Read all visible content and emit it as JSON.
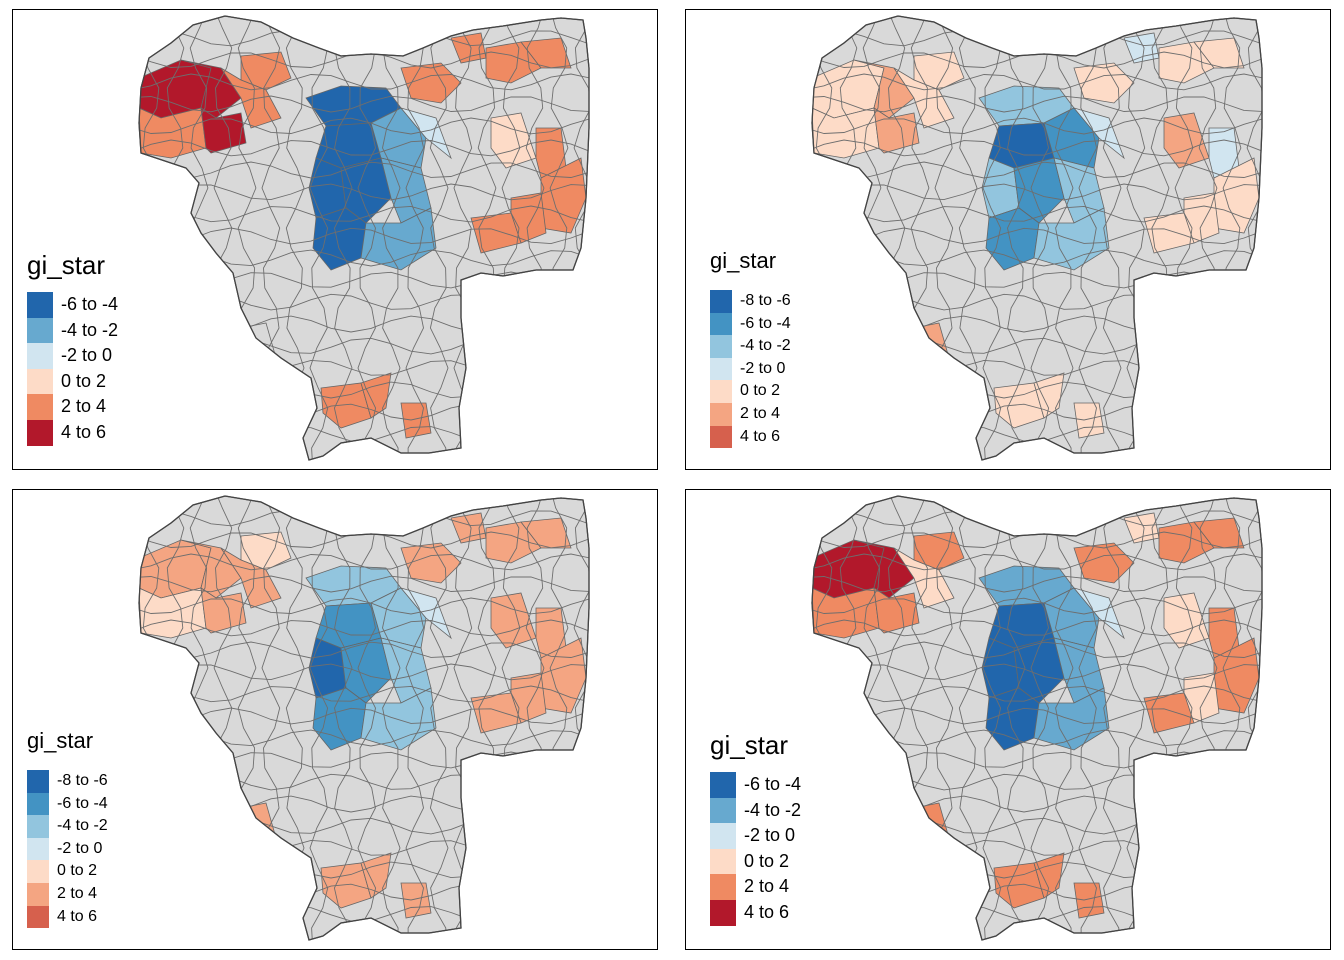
{
  "panels": [
    {
      "legend": {
        "title": "gi_star",
        "items": [
          {
            "label": "-6 to -4",
            "color": "#2166ac"
          },
          {
            "label": "-4 to -2",
            "color": "#67a9cf"
          },
          {
            "label": "-2 to 0",
            "color": "#d1e5f0"
          },
          {
            "label": "0 to 2",
            "color": "#fddbc7"
          },
          {
            "label": "2 to 4",
            "color": "#ef8a62"
          },
          {
            "label": "4 to 6",
            "color": "#b2182b"
          }
        ]
      }
    },
    {
      "legend": {
        "title": "gi_star",
        "items": [
          {
            "label": "-8 to -6",
            "color": "#2166ac"
          },
          {
            "label": "-6 to -4",
            "color": "#4393c3"
          },
          {
            "label": "-4 to -2",
            "color": "#92c5de"
          },
          {
            "label": "-2 to 0",
            "color": "#d1e5f0"
          },
          {
            "label": "0 to 2",
            "color": "#fddbc7"
          },
          {
            "label": "2 to 4",
            "color": "#f4a582"
          },
          {
            "label": "4 to 6",
            "color": "#d6604d"
          }
        ]
      }
    },
    {
      "legend": {
        "title": "gi_star",
        "items": [
          {
            "label": "-8 to -6",
            "color": "#2166ac"
          },
          {
            "label": "-6 to -4",
            "color": "#4393c3"
          },
          {
            "label": "-4 to -2",
            "color": "#92c5de"
          },
          {
            "label": "-2 to 0",
            "color": "#d1e5f0"
          },
          {
            "label": "0 to 2",
            "color": "#fddbc7"
          },
          {
            "label": "2 to 4",
            "color": "#f4a582"
          },
          {
            "label": "4 to 6",
            "color": "#d6604d"
          }
        ]
      }
    },
    {
      "legend": {
        "title": "gi_star",
        "items": [
          {
            "label": "-6 to -4",
            "color": "#2166ac"
          },
          {
            "label": "-4 to -2",
            "color": "#67a9cf"
          },
          {
            "label": "-2 to 0",
            "color": "#d1e5f0"
          },
          {
            "label": "0 to 2",
            "color": "#fddbc7"
          },
          {
            "label": "2 to 4",
            "color": "#ef8a62"
          },
          {
            "label": "4 to 6",
            "color": "#b2182b"
          }
        ]
      }
    }
  ]
}
